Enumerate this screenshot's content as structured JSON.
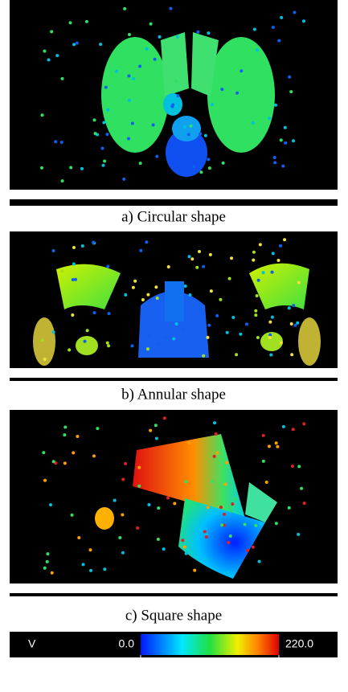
{
  "panels": [
    {
      "caption": "a) Circular shape"
    },
    {
      "caption": "b) Annular shape"
    },
    {
      "caption": "c) Square shape"
    }
  ],
  "colorbar": {
    "label": "V",
    "ticks": [
      {
        "value": 0,
        "label": "0.0"
      },
      {
        "value": 220,
        "label": "220.0"
      }
    ]
  }
}
